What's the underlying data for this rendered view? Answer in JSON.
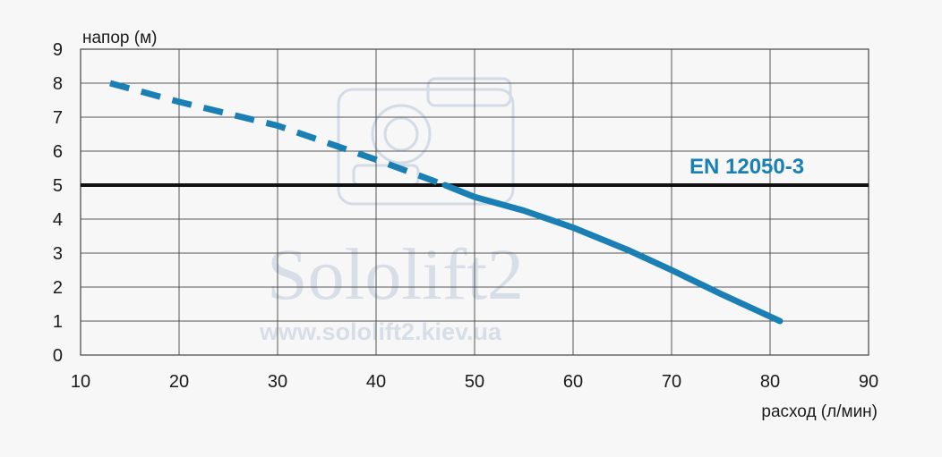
{
  "chart_data": {
    "type": "line",
    "ylabel": "напор (м)",
    "xlabel": "расход (л/мин)",
    "xlim": [
      10,
      90
    ],
    "ylim": [
      0,
      9
    ],
    "x_ticks": [
      "10",
      "20",
      "30",
      "40",
      "50",
      "60",
      "70",
      "80",
      "90"
    ],
    "y_ticks": [
      "0",
      "1",
      "2",
      "3",
      "4",
      "5",
      "6",
      "7",
      "8",
      "9"
    ],
    "grid": true,
    "series": [
      {
        "style": "dashed",
        "color": "#1a7fb5",
        "points": [
          [
            13,
            8.0
          ],
          [
            20,
            7.45
          ],
          [
            30,
            6.75
          ],
          [
            40,
            5.75
          ],
          [
            47,
            5.0
          ]
        ]
      },
      {
        "style": "solid",
        "color": "#1a7fb5",
        "points": [
          [
            47,
            5.0
          ],
          [
            50,
            4.65
          ],
          [
            55,
            4.25
          ],
          [
            60,
            3.75
          ],
          [
            65.5,
            3.1
          ],
          [
            70,
            2.5
          ],
          [
            75,
            1.8
          ],
          [
            81,
            1.0
          ]
        ]
      }
    ],
    "reference_line": {
      "y": 5,
      "label": "EN 12050-3",
      "label_color": "#1a7fb5"
    },
    "watermark": {
      "title": "Sololift2",
      "url": "www.sololift2.kiev.ua"
    }
  }
}
